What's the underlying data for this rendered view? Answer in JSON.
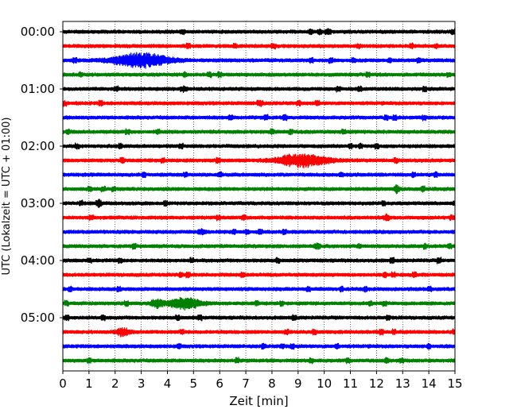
{
  "chart_data": {
    "type": "line",
    "title": "",
    "xlabel": "Zeit  [min]",
    "ylabel": "UTC (Lokalzeit = UTC + 01:00)",
    "xlim": [
      0,
      15
    ],
    "x_ticks": [
      0,
      1,
      2,
      3,
      4,
      5,
      6,
      7,
      8,
      9,
      10,
      11,
      12,
      13,
      14,
      15
    ],
    "y_tick_labels": [
      "00:00",
      "01:00",
      "02:00",
      "03:00",
      "04:00",
      "05:00"
    ],
    "grid": "vertical dotted at each minute",
    "trace_interval_minutes": 15,
    "trace_count": 24,
    "color_cycle": [
      "#000000",
      "#ff0000",
      "#0000ff",
      "#008000"
    ],
    "events": [
      {
        "start": "00:30",
        "center_min": 3.0,
        "width_min": 2.2,
        "amplitude": 0.55,
        "color": "#0000ff"
      },
      {
        "start": "02:15",
        "center_min": 9.2,
        "width_min": 2.0,
        "amplitude": 0.45,
        "color": "#ff0000"
      },
      {
        "start": "04:45",
        "center_min": 4.7,
        "width_min": 1.2,
        "amplitude": 0.45,
        "color": "#008000"
      },
      {
        "start": "04:45",
        "center_min": 3.6,
        "width_min": 0.5,
        "amplitude": 0.3,
        "color": "#008000"
      },
      {
        "start": "05:15",
        "center_min": 2.3,
        "width_min": 0.5,
        "amplitude": 0.3,
        "color": "#ff0000"
      }
    ]
  }
}
